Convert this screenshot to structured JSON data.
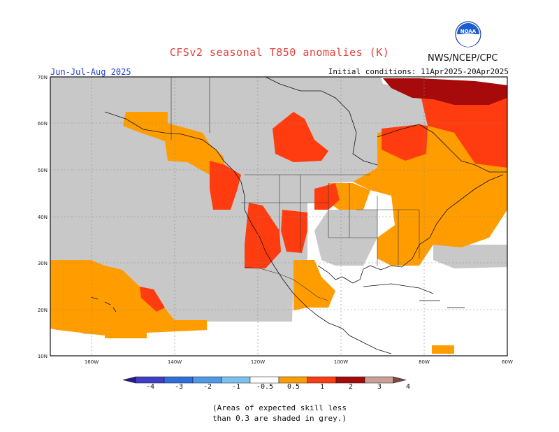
{
  "title": "CFSv2 seasonal T850 anomalies (K)",
  "agency": "NWS/NCEP/CPC",
  "logo_text": "NOAA",
  "season": "Jun-Jul-Aug 2025",
  "initial_conditions": "Initial conditions: 11Apr2025-20Apr2025",
  "lat_labels": [
    "70N",
    "60N",
    "50N",
    "40N",
    "30N",
    "20N",
    "10N"
  ],
  "lon_labels": [
    "160W",
    "140W",
    "120W",
    "100W",
    "80W",
    "60W"
  ],
  "colorbar": {
    "labels": [
      "-4",
      "-3",
      "-2",
      "-1",
      "-0.5",
      "0.5",
      "1",
      "2",
      "3",
      "4"
    ],
    "colors": [
      "#2a1a8c",
      "#3e3ec8",
      "#2f6fdc",
      "#4c9ae8",
      "#7cc0f0",
      "#ffffff",
      "#ff9c00",
      "#ff3c10",
      "#a60a0a",
      "#c8a096",
      "#7a4a40"
    ]
  },
  "note_line1": "(Areas of expected skill less",
  "note_line2": "than 0.3 are shaded in grey.)",
  "colors": {
    "grey_low_skill": "#c8c8c8",
    "anomaly_0_5_to_1": "#ff9c00",
    "anomaly_1_to_2": "#ff3c10",
    "anomaly_2_to_3": "#a60a0a",
    "title": "#e0403c",
    "season": "#1f3fd0"
  }
}
